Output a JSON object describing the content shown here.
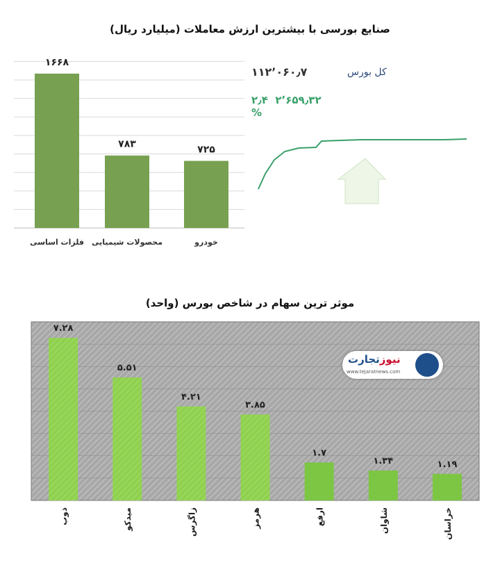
{
  "chart_data": [
    {
      "type": "bar",
      "title": "صنایع بورسی با بیشترین ارزش معاملات  (میلیارد ریال)",
      "categories": [
        "فلزات اساسی",
        "محصولات شیمیایی",
        "خودرو"
      ],
      "values": [
        1668,
        783,
        725
      ],
      "value_labels": [
        "۱۶۶۸",
        "۷۸۳",
        "۷۲۵"
      ],
      "ylim": [
        0,
        1900
      ],
      "grid": true,
      "grid_step": 200,
      "bar_color": "#77a050"
    },
    {
      "type": "bar",
      "title": "موثر ترین سهام در شاخص بورس (واحد)",
      "categories": [
        "ذوب",
        "میدکو",
        "زاگرس",
        "هرمز",
        "ارفع",
        "شاوان",
        "خراسان"
      ],
      "values": [
        7.28,
        5.51,
        4.21,
        3.85,
        1.7,
        1.34,
        1.19
      ],
      "value_labels": [
        "۷.۲۸",
        "۵.۵۱",
        "۴.۲۱",
        "۳.۸۵",
        "۱.۷",
        "۱.۳۴",
        "۱.۱۹"
      ],
      "ylim": [
        0,
        8
      ],
      "grid": true,
      "grid_step": 1,
      "bar_color": "#8fd14f",
      "bar_color_small": "#7cc643"
    }
  ],
  "index": {
    "name": "کل بورس",
    "value": "۱۱۲٬۰۶۰٫۷",
    "change": "۲٬۶۵۹٫۳۲",
    "percent": "۲٫۴ %",
    "color": "#3aa06a"
  },
  "logo": {
    "text": "تجارت نیوز",
    "url_text": "www.tejaratnews.com"
  }
}
